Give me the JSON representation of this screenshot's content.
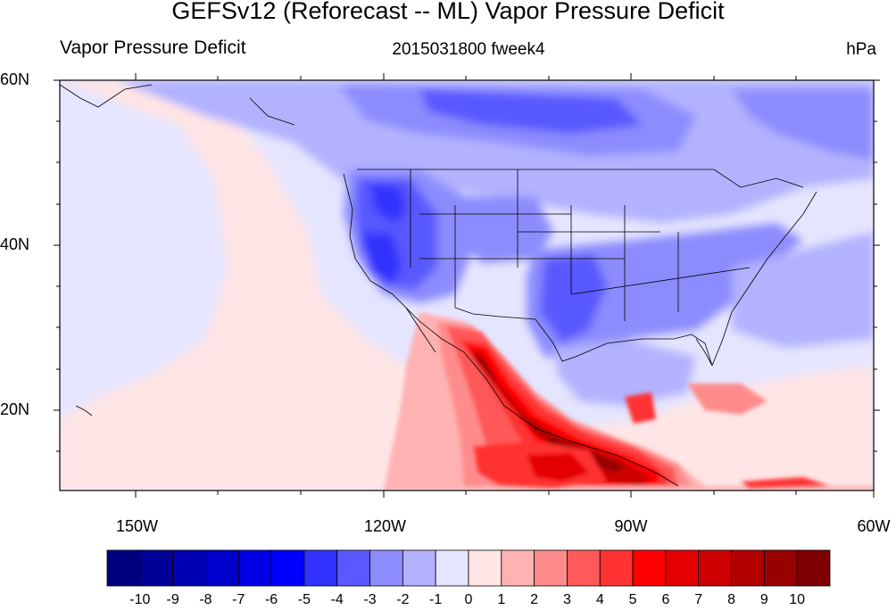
{
  "title": "GEFSv12 (Reforecast -- ML) Vapor Pressure Deficit",
  "left_subtitle": "Vapor Pressure Deficit",
  "center_subtitle": "2015031800 fweek4",
  "units": "hPa",
  "lat_labels": [
    "60N",
    "40N",
    "20N"
  ],
  "lon_labels": [
    "150W",
    "120W",
    "90W",
    "60W"
  ],
  "colorbar": {
    "colors": [
      "#00007f",
      "#000099",
      "#0000b2",
      "#0000cc",
      "#0000e5",
      "#0000ff",
      "#3333ff",
      "#5959ff",
      "#8c8cff",
      "#b2b2ff",
      "#e5e5ff",
      "#ffe5e5",
      "#ffb2b2",
      "#ff8c8c",
      "#ff5959",
      "#ff3333",
      "#ff0000",
      "#e50000",
      "#cc0000",
      "#b20000",
      "#990000",
      "#7f0000"
    ],
    "labels": [
      "-10",
      "-9",
      "-8",
      "-7",
      "-6",
      "-5",
      "-4",
      "-3",
      "-2",
      "-1",
      "0",
      "1",
      "2",
      "3",
      "4",
      "5",
      "6",
      "7",
      "8",
      "9",
      "10"
    ]
  }
}
